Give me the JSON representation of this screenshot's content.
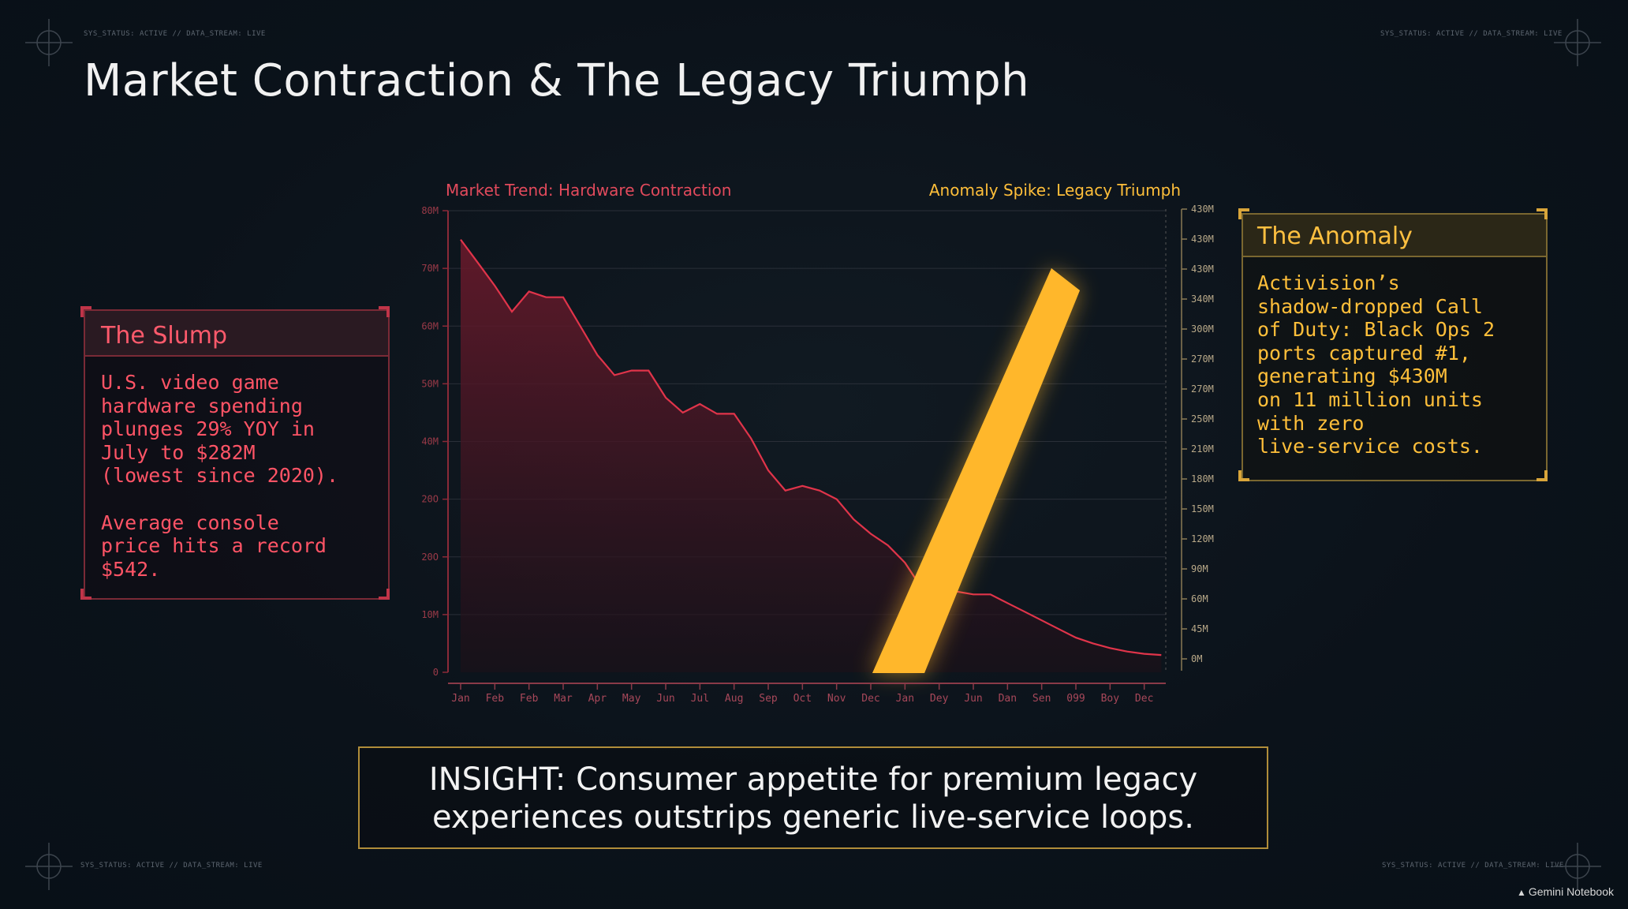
{
  "status_text": {
    "top_left": "SYS_STATUS: ACTIVE // DATA_STREAM: LIVE",
    "top_right": "SYS_STATUS: ACTIVE // DATA_STREAM: LIVE",
    "bottom_left": "SYS_STATUS: ACTIVE // DATA_STREAM: LIVE",
    "bottom_right": "SYS_STATUS: ACTIVE // DATA_STREAM: LIVE"
  },
  "title": "Market Contraction & The Legacy Triumph",
  "slump": {
    "heading": "The Slump",
    "body": "U.S. video game\nhardware spending\nplunges 29% YOY in\nJuly to $282M\n(lowest since 2020).\n\nAverage console\nprice hits a record\n$542."
  },
  "anomaly": {
    "heading": "The Anomaly",
    "body": "Activision’s\nshadow-dropped Call\nof Duty: Black Ops 2\nports captured #1,\ngenerating $430M\non 11 million units\nwith zero\nlive-service costs."
  },
  "insight": {
    "line1": "INSIGHT: Consumer appetite for premium legacy",
    "line2": "experiences outstrips generic live-service loops."
  },
  "brand": "Gemini Notebook",
  "colors": {
    "red": "#e0344a",
    "red_text": "#ff5466",
    "gold": "#ffb72b",
    "background": "#0b121a"
  },
  "chart_data": {
    "type": "area",
    "left_series_label": "Market Trend: Hardware Contraction",
    "right_series_label": "Anomaly Spike: Legacy Triumph",
    "categories": [
      "Jan",
      "Feb",
      "Feb",
      "Mar",
      "Apr",
      "May",
      "Jun",
      "Jul",
      "Aug",
      "Sep",
      "Oct",
      "Nov",
      "Dec",
      "Jan",
      "Dey",
      "Jun",
      "Dan",
      "Sen",
      "099",
      "Boy",
      "Dec"
    ],
    "left_axis": {
      "ticks": [
        "0",
        "10M",
        "20O",
        "20O",
        "40M",
        "50M",
        "60M",
        "70M",
        "80M"
      ],
      "range": [
        0,
        80
      ]
    },
    "right_axis": {
      "ticks": [
        "0M",
        "45M",
        "60M",
        "90M",
        "120M",
        "150M",
        "180M",
        "210M",
        "250M",
        "270M",
        "270M",
        "300M",
        "340M",
        "430M",
        "430M",
        "430M"
      ]
    },
    "area_series": {
      "name": "Market Trend: Hardware Contraction",
      "x": [
        0,
        0.5,
        1,
        1.5,
        2,
        2.5,
        3,
        3.5,
        4,
        4.5,
        5,
        5.5,
        6,
        6.5,
        7,
        7.5,
        8,
        8.5,
        9,
        9.5,
        10,
        10.5,
        11,
        11.5,
        12,
        12.5,
        13,
        13.5,
        14,
        14.5,
        15,
        15.5,
        16,
        16.5,
        17,
        17.5,
        18,
        18.5,
        19,
        19.5,
        20,
        20.5
      ],
      "values": [
        75,
        71,
        67,
        62.5,
        66,
        65,
        65,
        60,
        55,
        51.5,
        52.3,
        52.3,
        47.6,
        45,
        46.5,
        44.8,
        44.8,
        40.5,
        35,
        31.5,
        32.3,
        31.5,
        30,
        26.5,
        24,
        22,
        19,
        14.5,
        15.5,
        14,
        13.5,
        13.5,
        12,
        10.5,
        9,
        7.5,
        6,
        5,
        4.2,
        3.6,
        3.2,
        3
      ]
    },
    "spike_series": {
      "name": "Anomaly Spike: Legacy Triumph",
      "x": [
        12,
        18
      ],
      "values": [
        0,
        430
      ]
    },
    "grid": true
  }
}
